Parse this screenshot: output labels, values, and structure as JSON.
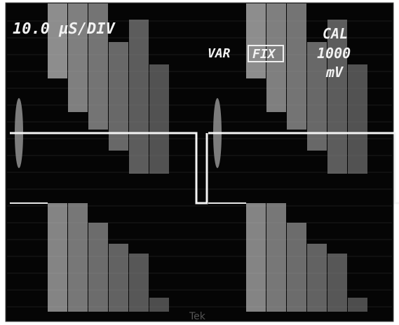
{
  "readout": {
    "timebase": "10.0 µS/DIV",
    "var": "VAR",
    "fix": "FIX",
    "cal": "CAL",
    "amplitude": "1000",
    "unit": "mV"
  },
  "brand": "Tek"
}
